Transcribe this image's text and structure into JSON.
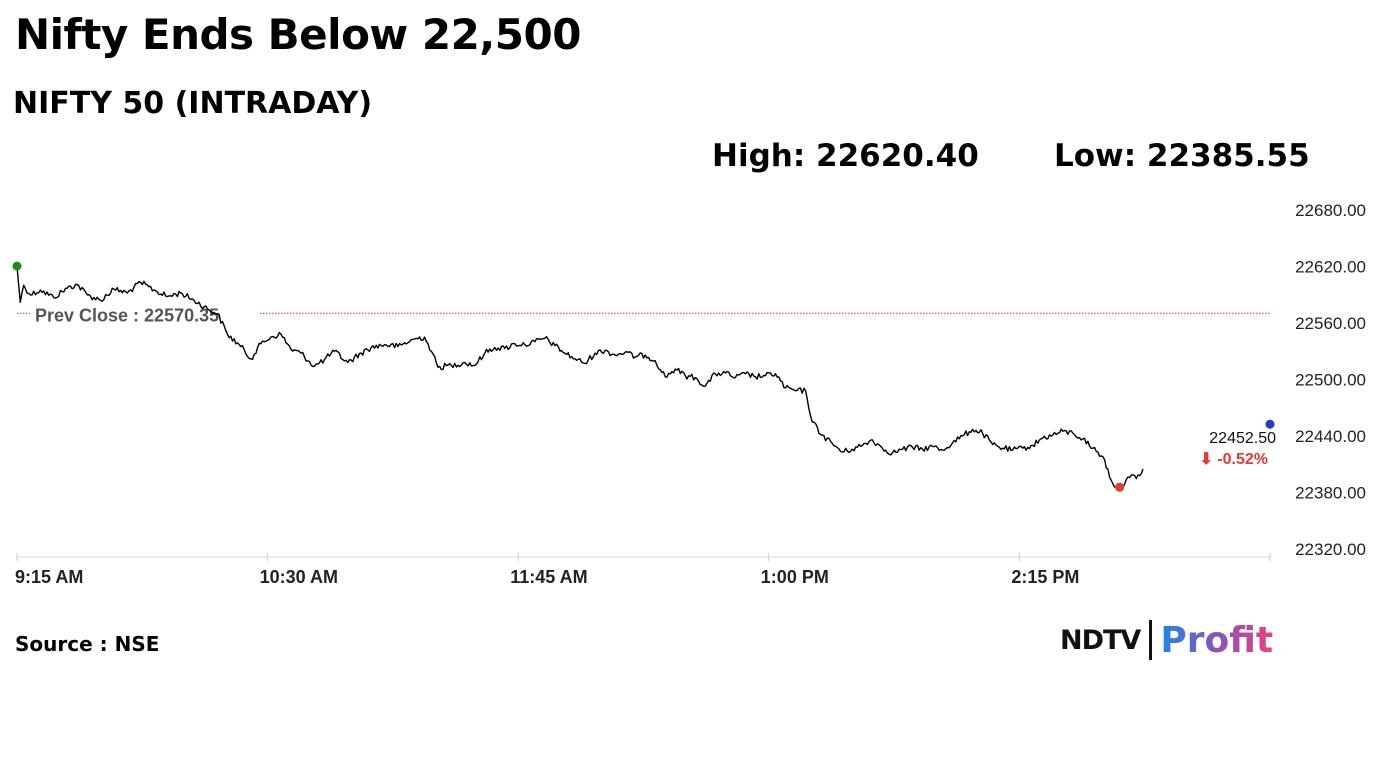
{
  "header": {
    "headline": "Nifty Ends Below 22,500",
    "subtitle": "NIFTY 50 (INTRADAY)",
    "high_text": "High: 22620.40",
    "low_text": "Low: 22385.55"
  },
  "footer": {
    "source": "Source : NSE",
    "brand_left": "NDTV",
    "brand_right": "Profit"
  },
  "colors": {
    "line": "#000000",
    "prev_close": "#d32f2f",
    "open_marker": "#1a8a1a",
    "low_marker": "#e53935",
    "last_marker": "#1f3fbf",
    "change_negative": "#e53935"
  },
  "chart_data": {
    "type": "line",
    "title": "NIFTY 50 (INTRADAY)",
    "high": 22620.4,
    "low": 22385.55,
    "prev_close": 22570.35,
    "prev_close_label": "Prev Close : 22570.35",
    "last_value": 22452.5,
    "last_value_label": "22452.50",
    "change_label": "⬇ -0.52%",
    "ylim": [
      22320,
      22680
    ],
    "y_ticks": [
      22680,
      22620,
      22560,
      22500,
      22440,
      22380,
      22320
    ],
    "y_tick_labels": [
      "22680.00",
      "22620.00",
      "22560.00",
      "22500.00",
      "22440.00",
      "22380.00",
      "22320.00"
    ],
    "x_start": "09:15",
    "x_end": "15:30",
    "x_ticks": [
      "09:15",
      "10:30",
      "11:45",
      "13:00",
      "14:15"
    ],
    "x_tick_labels": [
      "9:15 AM",
      "10:30 AM",
      "11:45 AM",
      "1:00 PM",
      "2:15 PM"
    ],
    "grid": false,
    "series": [
      {
        "points": [
          [
            "09:15",
            22620.4
          ],
          [
            "09:16",
            22582
          ],
          [
            "09:17",
            22600
          ],
          [
            "09:19",
            22590
          ],
          [
            "09:22",
            22595
          ],
          [
            "09:26",
            22587
          ],
          [
            "09:30",
            22597
          ],
          [
            "09:33",
            22601
          ],
          [
            "09:36",
            22590
          ],
          [
            "09:40",
            22584
          ],
          [
            "09:44",
            22596
          ],
          [
            "09:48",
            22592
          ],
          [
            "09:52",
            22603
          ],
          [
            "09:56",
            22595
          ],
          [
            "10:00",
            22588
          ],
          [
            "10:04",
            22592
          ],
          [
            "10:08",
            22584
          ],
          [
            "10:12",
            22575
          ],
          [
            "10:15",
            22570
          ],
          [
            "10:18",
            22548
          ],
          [
            "10:22",
            22535
          ],
          [
            "10:25",
            22522
          ],
          [
            "10:28",
            22538
          ],
          [
            "10:31",
            22545
          ],
          [
            "10:34",
            22548
          ],
          [
            "10:37",
            22532
          ],
          [
            "10:40",
            22528
          ],
          [
            "10:44",
            22514
          ],
          [
            "10:47",
            22521
          ],
          [
            "10:50",
            22530
          ],
          [
            "10:54",
            22518
          ],
          [
            "10:58",
            22528
          ],
          [
            "11:01",
            22534
          ],
          [
            "11:05",
            22537
          ],
          [
            "11:09",
            22535
          ],
          [
            "11:14",
            22543
          ],
          [
            "11:17",
            22545
          ],
          [
            "11:19",
            22530
          ],
          [
            "11:21",
            22513
          ],
          [
            "11:25",
            22515
          ],
          [
            "11:29",
            22518
          ],
          [
            "11:32",
            22515
          ],
          [
            "11:35",
            22528
          ],
          [
            "11:38",
            22534
          ],
          [
            "11:41",
            22533
          ],
          [
            "11:44",
            22538
          ],
          [
            "11:47",
            22537
          ],
          [
            "11:50",
            22540
          ],
          [
            "11:53",
            22544
          ],
          [
            "11:56",
            22536
          ],
          [
            "11:59",
            22528
          ],
          [
            "12:02",
            22522
          ],
          [
            "12:05",
            22517
          ],
          [
            "12:08",
            22528
          ],
          [
            "12:11",
            22531
          ],
          [
            "12:14",
            22526
          ],
          [
            "12:17",
            22529
          ],
          [
            "12:20",
            22524
          ],
          [
            "12:23",
            22526
          ],
          [
            "12:26",
            22520
          ],
          [
            "12:29",
            22503
          ],
          [
            "12:32",
            22511
          ],
          [
            "12:35",
            22504
          ],
          [
            "12:38",
            22502
          ],
          [
            "12:41",
            22493
          ],
          [
            "12:44",
            22506
          ],
          [
            "12:47",
            22507
          ],
          [
            "12:50",
            22502
          ],
          [
            "12:53",
            22506
          ],
          [
            "12:56",
            22503
          ],
          [
            "12:59",
            22504
          ],
          [
            "13:02",
            22506
          ],
          [
            "13:05",
            22491
          ],
          [
            "13:08",
            22488
          ],
          [
            "13:11",
            22488
          ],
          [
            "13:13",
            22455
          ],
          [
            "13:16",
            22441
          ],
          [
            "13:19",
            22432
          ],
          [
            "13:22",
            22423
          ],
          [
            "13:25",
            22426
          ],
          [
            "13:28",
            22430
          ],
          [
            "13:31",
            22436
          ],
          [
            "13:34",
            22427
          ],
          [
            "13:37",
            22422
          ],
          [
            "13:40",
            22426
          ],
          [
            "13:43",
            22428
          ],
          [
            "13:46",
            22426
          ],
          [
            "13:49",
            22429
          ],
          [
            "13:52",
            22425
          ],
          [
            "13:55",
            22433
          ],
          [
            "13:58",
            22440
          ],
          [
            "14:01",
            22447
          ],
          [
            "14:04",
            22443
          ],
          [
            "14:07",
            22431
          ],
          [
            "14:10",
            22427
          ],
          [
            "14:13",
            22425
          ],
          [
            "14:16",
            22427
          ],
          [
            "14:19",
            22430
          ],
          [
            "14:22",
            22438
          ],
          [
            "14:25",
            22441
          ],
          [
            "14:28",
            22445
          ],
          [
            "14:31",
            22443
          ],
          [
            "14:34",
            22437
          ],
          [
            "14:37",
            22427
          ],
          [
            "14:40",
            22418
          ],
          [
            "14:43",
            22389
          ],
          [
            "14:45",
            22385.55
          ],
          [
            "14:48",
            22396
          ],
          [
            "14:51",
            22398
          ],
          [
            "14:52",
            22405
          ]
        ]
      }
    ],
    "markers": [
      {
        "at": "09:15",
        "value": 22620.4,
        "color": "#1a8a1a"
      },
      {
        "at": "14:45",
        "value": 22385.55,
        "color": "#e53935"
      },
      {
        "at": "15:30",
        "value": 22452.5,
        "color": "#1f3fbf"
      }
    ]
  }
}
